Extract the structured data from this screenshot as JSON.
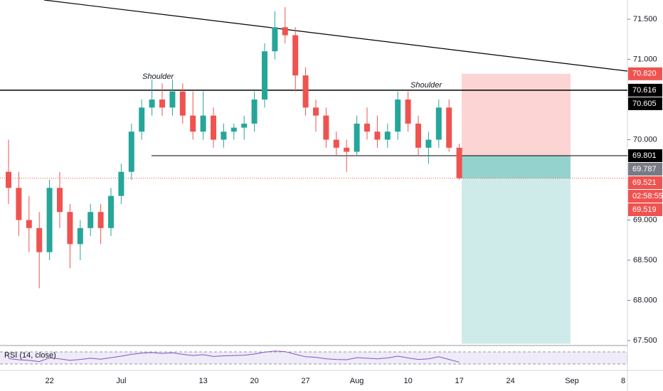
{
  "chart_data": {
    "type": "candlestick",
    "categories": [
      null,
      null,
      null,
      null,
      "22",
      null,
      null,
      null,
      null,
      null,
      null,
      "Jul",
      null,
      null,
      null,
      null,
      null,
      null,
      null,
      "13",
      null,
      null,
      null,
      null,
      "20",
      null,
      null,
      null,
      null,
      "27",
      null,
      null,
      null,
      null,
      "Aug",
      null,
      null,
      null,
      null,
      "10",
      null,
      null,
      null,
      null,
      "17",
      null,
      null,
      null,
      null,
      "24",
      null,
      null,
      null,
      null,
      null,
      "Sep",
      null,
      null,
      null,
      null,
      "8"
    ],
    "open": [
      69.6,
      69.4,
      69.0,
      68.9,
      68.6,
      69.4,
      69.1,
      68.7,
      68.9,
      69.1,
      68.9,
      69.3,
      69.6,
      70.1,
      70.4,
      70.5,
      70.4,
      70.6,
      70.3,
      70.1,
      70.3,
      70.0,
      70.1,
      70.15,
      70.2,
      70.5,
      71.1,
      71.4,
      71.3,
      70.8,
      70.4,
      70.3,
      70.0,
      69.9,
      69.85,
      70.2,
      70.1,
      70.0,
      70.1,
      70.5,
      70.2,
      69.9,
      70.0,
      70.4,
      69.9,
      null,
      null,
      null,
      null,
      null,
      null,
      null,
      null,
      null,
      null,
      null,
      null,
      null,
      null,
      null,
      null
    ],
    "high": [
      70.0,
      69.6,
      69.3,
      69.1,
      69.5,
      69.6,
      69.2,
      69.0,
      69.2,
      69.2,
      69.4,
      69.7,
      70.2,
      70.5,
      70.75,
      70.7,
      70.75,
      70.7,
      70.6,
      70.6,
      70.4,
      70.2,
      70.2,
      70.3,
      70.6,
      71.2,
      71.6,
      71.65,
      71.4,
      70.9,
      70.5,
      70.4,
      70.1,
      70.0,
      70.3,
      70.4,
      70.3,
      70.2,
      70.6,
      70.6,
      70.3,
      70.1,
      70.5,
      70.5,
      69.95,
      null,
      null,
      null,
      null,
      null,
      null,
      null,
      null,
      null,
      null,
      null,
      null,
      null,
      null,
      null,
      null
    ],
    "low": [
      69.2,
      68.8,
      68.6,
      68.15,
      68.5,
      68.9,
      68.4,
      68.5,
      68.8,
      68.7,
      68.8,
      69.2,
      69.5,
      70.0,
      70.3,
      70.3,
      70.3,
      70.2,
      70.0,
      70.0,
      69.9,
      69.9,
      70.0,
      70.0,
      70.1,
      70.4,
      71.0,
      71.2,
      70.6,
      70.3,
      70.1,
      69.9,
      69.8,
      69.6,
      69.8,
      70.0,
      69.9,
      69.9,
      70.0,
      70.1,
      69.8,
      69.7,
      69.9,
      69.85,
      69.5,
      null,
      null,
      null,
      null,
      null,
      null,
      null,
      null,
      null,
      null,
      null,
      null,
      null,
      null,
      null,
      null
    ],
    "close": [
      69.4,
      69.0,
      68.9,
      68.6,
      69.4,
      69.1,
      68.7,
      68.9,
      69.1,
      68.9,
      69.3,
      69.6,
      70.1,
      70.4,
      70.5,
      70.4,
      70.6,
      70.3,
      70.1,
      70.3,
      70.0,
      70.1,
      70.15,
      70.2,
      70.5,
      71.1,
      71.4,
      71.3,
      70.8,
      70.4,
      70.3,
      70.0,
      69.9,
      69.85,
      70.2,
      70.1,
      70.0,
      70.1,
      70.5,
      70.2,
      69.9,
      70.0,
      70.4,
      69.9,
      69.52,
      null,
      null,
      null,
      null,
      null,
      null,
      null,
      null,
      null,
      null,
      null,
      null,
      null,
      null,
      null,
      null
    ],
    "up_color": "#26a69a",
    "down_color": "#ef5350",
    "ylim": [
      67.45,
      71.74
    ],
    "yticks": [
      {
        "value": 67.5,
        "label": "67.500"
      },
      {
        "value": 68,
        "label": "68.000"
      },
      {
        "value": 68.5,
        "label": "68.500"
      },
      {
        "value": 69,
        "label": "69.000"
      },
      {
        "value": 70,
        "label": "70.000"
      },
      {
        "value": 71,
        "label": "71.000"
      },
      {
        "value": 71.5,
        "label": "71.500"
      }
    ],
    "price_tags": [
      {
        "value": 70.82,
        "label": "70.820",
        "color": "#ef5350"
      },
      {
        "value": 70.616,
        "color": "#000000"
      },
      {
        "value": 70.605,
        "color": "#000000"
      },
      {
        "value": 69.801,
        "color": "#000000"
      },
      {
        "value": 69.787,
        "color": "#787b86"
      },
      {
        "value": 69.521,
        "color": "#ef5350"
      },
      {
        "label": "02:58:55",
        "color": "#ef5350"
      },
      {
        "value": 69.519,
        "color": "#ef5350"
      }
    ],
    "position": {
      "stop": 70.82,
      "entry": 69.801,
      "target": 67.46
    },
    "annotations": [
      {
        "text": "Shoulder"
      },
      {
        "text": "Shoulder"
      }
    ],
    "rsi": {
      "label": "RSI (14, close)",
      "color": "#7e57c2",
      "ylim": [
        0,
        100
      ],
      "band": [
        30,
        70
      ],
      "values": [
        48,
        44,
        42,
        38,
        50,
        47,
        42,
        45,
        49,
        46,
        51,
        56,
        62,
        66,
        68,
        65,
        67,
        62,
        58,
        61,
        55,
        57,
        58,
        59,
        63,
        69,
        73,
        71,
        62,
        54,
        52,
        47,
        45,
        44,
        51,
        49,
        47,
        50,
        56,
        50,
        45,
        47,
        54,
        45,
        36,
        null,
        null,
        null,
        null,
        null,
        null,
        null,
        null,
        null,
        null,
        null,
        null,
        null,
        null,
        null,
        null
      ]
    }
  }
}
